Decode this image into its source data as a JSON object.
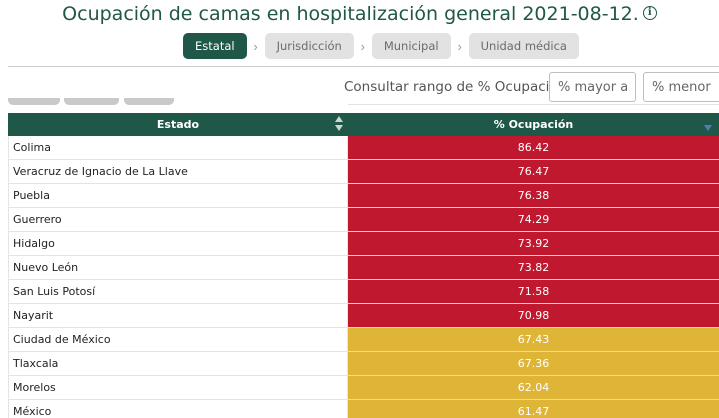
{
  "header": {
    "title": "Ocupación de camas en hospitalización general 2021-08-12.",
    "info_icon": "info-icon"
  },
  "breadcrumb": [
    {
      "label": "Estatal",
      "active": true
    },
    {
      "label": "Jurisdicción",
      "active": false
    },
    {
      "label": "Municipal",
      "active": false
    },
    {
      "label": "Unidad médica",
      "active": false
    }
  ],
  "filter": {
    "label": "Consultar rango de % Ocupación:",
    "min_placeholder": "% mayor a",
    "max_placeholder": "% menor a"
  },
  "table": {
    "columns": [
      "Estado",
      "% Ocupación"
    ],
    "sort": {
      "Estado": "sortable",
      "% Ocupación": "descending"
    },
    "colors": {
      "high": "#c0192f",
      "medium": "#dfb537",
      "header": "#1f5748"
    },
    "rows": [
      {
        "estado": "Colima",
        "ocupacion": "86.42",
        "level": "high"
      },
      {
        "estado": "Veracruz de Ignacio de La Llave",
        "ocupacion": "76.47",
        "level": "high"
      },
      {
        "estado": "Puebla",
        "ocupacion": "76.38",
        "level": "high"
      },
      {
        "estado": "Guerrero",
        "ocupacion": "74.29",
        "level": "high"
      },
      {
        "estado": "Hidalgo",
        "ocupacion": "73.92",
        "level": "high"
      },
      {
        "estado": "Nuevo León",
        "ocupacion": "73.82",
        "level": "high"
      },
      {
        "estado": "San Luis Potosí",
        "ocupacion": "71.58",
        "level": "high"
      },
      {
        "estado": "Nayarit",
        "ocupacion": "70.98",
        "level": "high"
      },
      {
        "estado": "Ciudad de México",
        "ocupacion": "67.43",
        "level": "medium"
      },
      {
        "estado": "Tlaxcala",
        "ocupacion": "67.36",
        "level": "medium"
      },
      {
        "estado": "Morelos",
        "ocupacion": "62.04",
        "level": "medium"
      },
      {
        "estado": "México",
        "ocupacion": "61.47",
        "level": "medium"
      }
    ]
  }
}
